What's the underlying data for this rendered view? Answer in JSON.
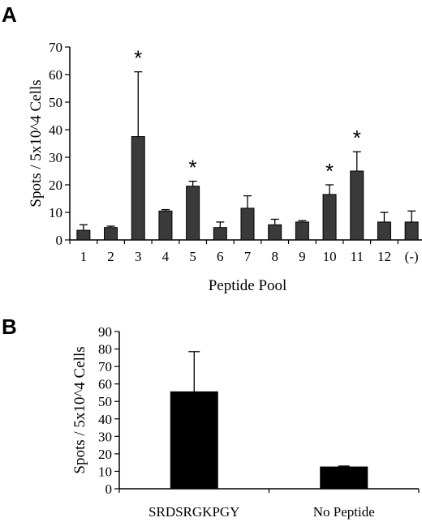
{
  "panels": {
    "a_label": "A",
    "b_label": "B"
  },
  "chart_data": [
    {
      "type": "bar",
      "panel": "A",
      "xlabel": "Peptide Pool",
      "ylabel": "Spots / 5x10^4 Cells",
      "ylim": [
        0,
        70
      ],
      "yticks": [
        0,
        10,
        20,
        30,
        40,
        50,
        60,
        70
      ],
      "categories": [
        "1",
        "2",
        "3",
        "4",
        "5",
        "6",
        "7",
        "8",
        "9",
        "10",
        "11",
        "12",
        "(-)"
      ],
      "values": [
        3.5,
        4.5,
        37.5,
        10.5,
        19.5,
        4.5,
        11.5,
        5.5,
        6.5,
        16.5,
        25,
        6.5,
        6.5
      ],
      "errors": [
        2,
        0.5,
        23.5,
        0.5,
        1.8,
        2,
        4.5,
        2,
        0.5,
        3.5,
        7,
        3.5,
        4
      ],
      "significance_marker": "*",
      "significant": [
        "3",
        "5",
        "10",
        "11"
      ],
      "bar_color": "#3a3a3a"
    },
    {
      "type": "bar",
      "panel": "B",
      "xlabel": "",
      "ylabel": "Spots / 5x10^4 Cells",
      "ylim": [
        0,
        90
      ],
      "yticks": [
        0,
        10,
        20,
        30,
        40,
        50,
        60,
        70,
        80,
        90
      ],
      "categories": [
        "SRDSRGKPGY",
        "No Peptide"
      ],
      "values": [
        55.5,
        12.5
      ],
      "errors": [
        23,
        0.5
      ],
      "bar_color": "#000000"
    }
  ]
}
